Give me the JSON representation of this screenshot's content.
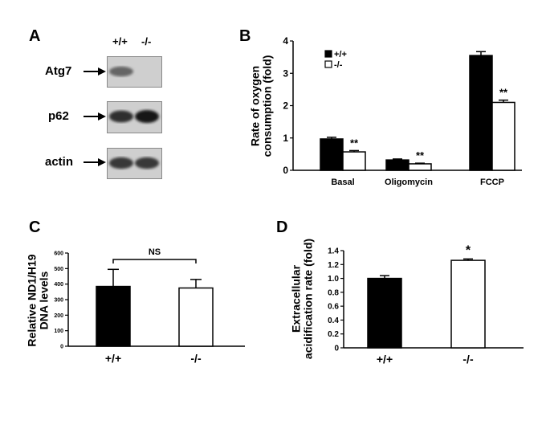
{
  "panels": {
    "a": {
      "letter": "A",
      "lanes": [
        "+/+",
        "-/-"
      ],
      "bands": [
        {
          "label": "Atg7",
          "intensity": [
            0.55,
            0.05
          ]
        },
        {
          "label": "p62",
          "intensity": [
            0.85,
            1.0
          ]
        },
        {
          "label": "actin",
          "intensity": [
            0.8,
            0.8
          ]
        }
      ]
    },
    "b": {
      "letter": "B"
    },
    "c": {
      "letter": "C"
    },
    "d": {
      "letter": "D"
    }
  },
  "chart_data": [
    {
      "type": "bar",
      "panel": "B",
      "ylabel": "Rate of oxygen consumption (fold)",
      "categories": [
        "Basal",
        "Oligomycin",
        "FCCP"
      ],
      "ylim": [
        0,
        4
      ],
      "yticks": [
        "0",
        "1",
        "2",
        "3",
        "4"
      ],
      "series": [
        {
          "name": "+/+",
          "color": "#000000",
          "values": [
            0.97,
            0.32,
            3.55
          ],
          "errors": [
            0.05,
            0.03,
            0.12
          ]
        },
        {
          "name": "-/-",
          "color": "#ffffff",
          "values": [
            0.57,
            0.2,
            2.1
          ],
          "errors": [
            0.04,
            0.02,
            0.07
          ]
        }
      ],
      "annotations": [
        "**",
        "**",
        "**"
      ],
      "legend": "top-left"
    },
    {
      "type": "bar",
      "panel": "C",
      "ylabel": "Relative ND1/H19 DNA levels",
      "categories": [
        "+/+",
        "-/-"
      ],
      "ylim": [
        0,
        600
      ],
      "yticks": [
        "0",
        "100",
        "200",
        "300",
        "400",
        "500",
        "600"
      ],
      "values": [
        385,
        375
      ],
      "errors": [
        110,
        55
      ],
      "colors": [
        "#000000",
        "#ffffff"
      ],
      "bracket_label": "NS"
    },
    {
      "type": "bar",
      "panel": "D",
      "ylabel": "Extracellular acidification rate (fold)",
      "categories": [
        "+/+",
        "-/-"
      ],
      "ylim": [
        0,
        1.4
      ],
      "yticks": [
        "0",
        "0.2",
        "0.4",
        "0.6",
        "0.8",
        "1.0",
        "1.2",
        "1.4"
      ],
      "values": [
        1.0,
        1.26
      ],
      "errors": [
        0.04,
        0.02
      ],
      "colors": [
        "#000000",
        "#ffffff"
      ],
      "annotation": "*"
    }
  ]
}
